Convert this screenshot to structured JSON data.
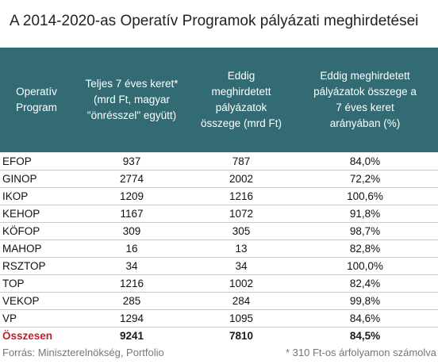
{
  "title": "A 2014-2020-as Operatív Programok pályázati meghirdetései",
  "headers": [
    [
      "Operatív",
      "Program"
    ],
    [
      "Teljes 7 éves keret*",
      "(mrd Ft, magyar",
      "\"önrésszel\" együtt)"
    ],
    [
      "Eddig",
      "meghirdetett",
      "pályázatok",
      "összege (mrd Ft)"
    ],
    [
      "Eddig meghirdetett",
      "pályázatok összege a",
      "7 éves keret",
      "arányában (%)"
    ]
  ],
  "rows": [
    {
      "program": "EFOP",
      "total": "937",
      "announced": "787",
      "ratio": "84,0%"
    },
    {
      "program": "GINOP",
      "total": "2774",
      "announced": "2002",
      "ratio": "72,2%"
    },
    {
      "program": "IKOP",
      "total": "1209",
      "announced": "1216",
      "ratio": "100,6%"
    },
    {
      "program": "KEHOP",
      "total": "1167",
      "announced": "1072",
      "ratio": "91,8%"
    },
    {
      "program": "KÖFOP",
      "total": "309",
      "announced": "305",
      "ratio": "98,7%"
    },
    {
      "program": "MAHOP",
      "total": "16",
      "announced": "13",
      "ratio": "82,8%"
    },
    {
      "program": "RSZTOP",
      "total": "34",
      "announced": "34",
      "ratio": "100,0%"
    },
    {
      "program": "TOP",
      "total": "1216",
      "announced": "1002",
      "ratio": "82,4%"
    },
    {
      "program": "VEKOP",
      "total": "285",
      "announced": "284",
      "ratio": "99,8%"
    },
    {
      "program": "VP",
      "total": "1294",
      "announced": "1095",
      "ratio": "84,6%"
    }
  ],
  "total_row": {
    "program": "Összesen",
    "total": "9241",
    "announced": "7810",
    "ratio": "84,5%"
  },
  "source": "Forrás: Miniszterelnökség, Portfolio",
  "footnote": "* 310 Ft-os árfolyamon számolva",
  "colors": {
    "header_bg": "#336b74",
    "total_label": "#c0202a"
  }
}
